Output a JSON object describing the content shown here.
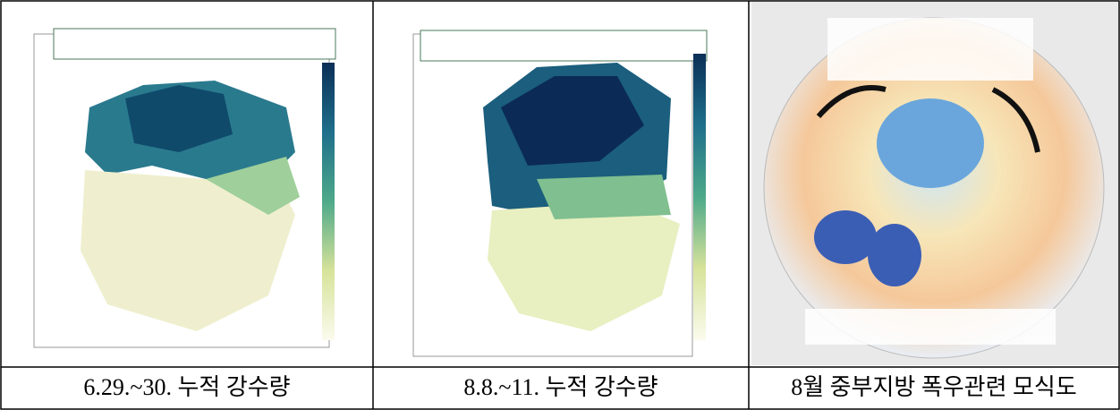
{
  "table": {
    "captions": [
      "6.29.~30. 누적 강수량",
      "8.8.~11. 누적 강수량",
      "8월 중부지방 폭우관련 모식도"
    ]
  }
}
